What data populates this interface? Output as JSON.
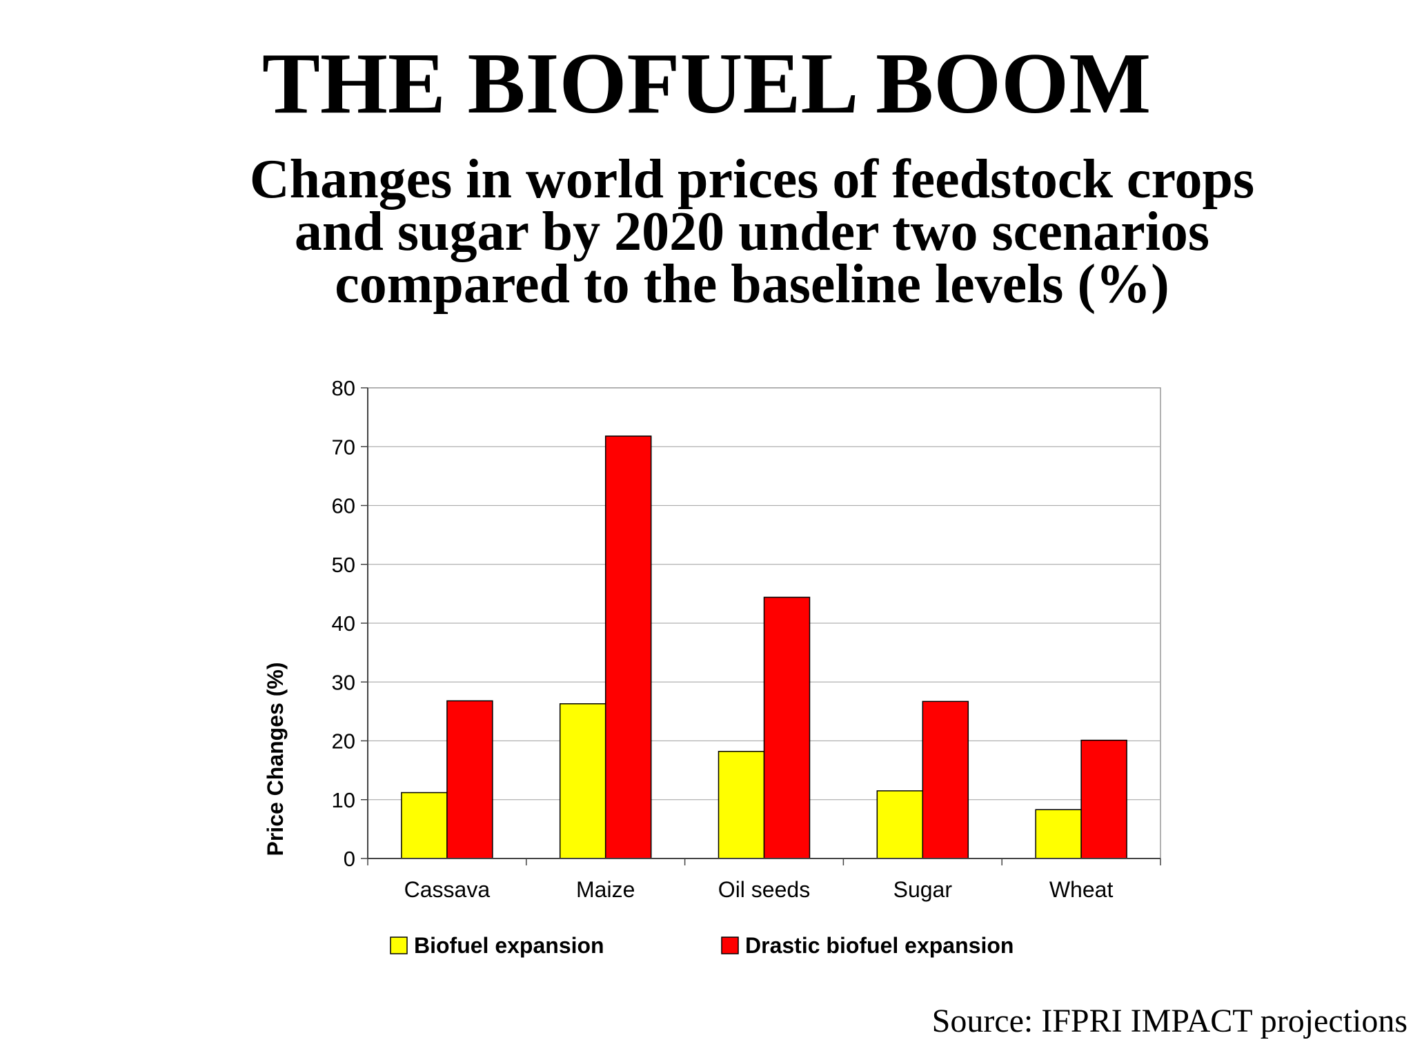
{
  "header": {
    "title": "THE BIOFUEL BOOM",
    "subtitle_lines": [
      "Changes in world prices of feedstock crops",
      "and sugar by 2020 under two scenarios",
      "compared to the baseline levels (%)"
    ]
  },
  "chart_data": {
    "type": "bar",
    "categories": [
      "Cassava",
      "Maize",
      "Oil seeds",
      "Sugar",
      "Wheat"
    ],
    "series": [
      {
        "name": "Biofuel expansion",
        "color": "#ffff00",
        "values": [
          11.2,
          26.3,
          18.2,
          11.5,
          8.3
        ]
      },
      {
        "name": "Drastic biofuel expansion",
        "color": "#ff0000",
        "values": [
          26.8,
          71.8,
          44.4,
          26.7,
          20.1
        ]
      }
    ],
    "ylabel": "Price Changes (%)",
    "ylim": [
      0,
      80
    ],
    "yticks": [
      0,
      10,
      20,
      30,
      40,
      50,
      60,
      70,
      80
    ],
    "grid": true,
    "legend_position": "bottom"
  },
  "footer": {
    "source": "Source: IFPRI IMPACT projections"
  }
}
